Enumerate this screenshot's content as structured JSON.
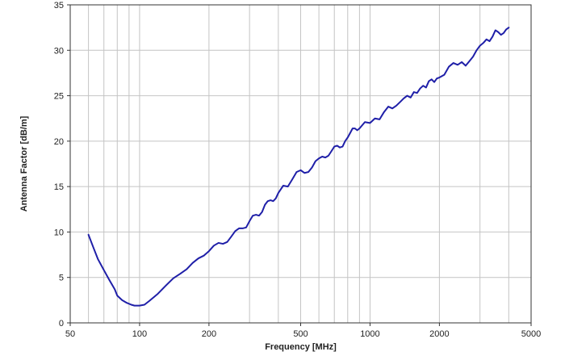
{
  "chart_data": {
    "type": "line",
    "xlabel": "Frequency [MHz]",
    "ylabel": "Antenna Factor [dB/m]",
    "x_scale": "log",
    "xlim": [
      50,
      5000
    ],
    "ylim": [
      0,
      35
    ],
    "grid": true,
    "x_ticks": [
      50,
      100,
      200,
      500,
      1000,
      2000,
      5000
    ],
    "y_ticks": [
      0,
      5,
      10,
      15,
      20,
      25,
      30,
      35
    ],
    "line_color": "#1f1fa8",
    "series": [
      {
        "x": [
          60,
          63,
          66,
          70,
          74,
          78,
          80,
          84,
          88,
          92,
          95,
          100,
          105,
          110,
          120,
          130,
          140,
          150,
          160,
          170,
          180,
          190,
          200,
          210,
          220,
          230,
          240,
          250,
          260,
          270,
          280,
          290,
          300,
          310,
          320,
          330,
          340,
          350,
          360,
          370,
          380,
          390,
          400,
          420,
          440,
          460,
          480,
          500,
          520,
          540,
          560,
          580,
          600,
          620,
          640,
          660,
          680,
          700,
          720,
          740,
          760,
          780,
          800,
          820,
          840,
          860,
          880,
          900,
          950,
          1000,
          1050,
          1100,
          1150,
          1200,
          1250,
          1300,
          1350,
          1400,
          1450,
          1500,
          1550,
          1600,
          1650,
          1700,
          1750,
          1800,
          1850,
          1900,
          1950,
          2000,
          2100,
          2200,
          2300,
          2400,
          2500,
          2600,
          2700,
          2800,
          2900,
          3000,
          3100,
          3200,
          3300,
          3400,
          3500,
          3600,
          3700,
          3800,
          3900,
          4000
        ],
        "y": [
          9.7,
          8.3,
          7.0,
          5.8,
          4.7,
          3.7,
          3.0,
          2.5,
          2.2,
          2.0,
          1.9,
          1.9,
          2.0,
          2.4,
          3.2,
          4.1,
          4.9,
          5.4,
          5.9,
          6.6,
          7.1,
          7.4,
          7.9,
          8.5,
          8.8,
          8.7,
          8.9,
          9.5,
          10.1,
          10.4,
          10.4,
          10.5,
          11.2,
          11.8,
          11.9,
          11.8,
          12.2,
          13.0,
          13.4,
          13.5,
          13.4,
          13.7,
          14.3,
          15.1,
          15.0,
          15.8,
          16.6,
          16.8,
          16.5,
          16.6,
          17.1,
          17.8,
          18.1,
          18.3,
          18.2,
          18.4,
          18.9,
          19.4,
          19.5,
          19.3,
          19.4,
          20.0,
          20.4,
          20.9,
          21.4,
          21.4,
          21.2,
          21.4,
          22.1,
          22.0,
          22.5,
          22.4,
          23.2,
          23.8,
          23.6,
          23.9,
          24.3,
          24.7,
          25.0,
          24.8,
          25.4,
          25.3,
          25.8,
          26.1,
          25.9,
          26.6,
          26.8,
          26.5,
          26.9,
          27.0,
          27.3,
          28.2,
          28.6,
          28.4,
          28.7,
          28.3,
          28.8,
          29.3,
          30.0,
          30.5,
          30.8,
          31.2,
          31.0,
          31.5,
          32.2,
          32.0,
          31.7,
          31.9,
          32.3,
          32.5
        ]
      }
    ]
  }
}
